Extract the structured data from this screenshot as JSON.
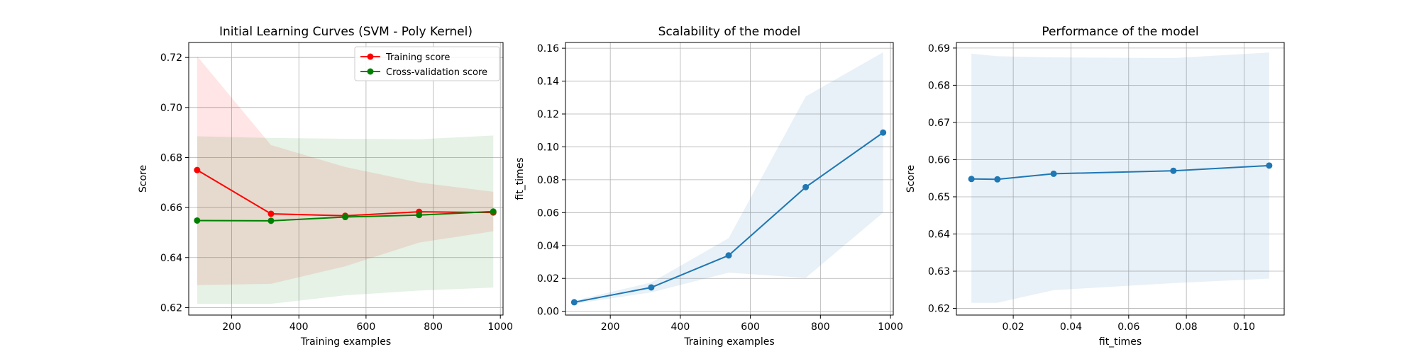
{
  "chart_data": [
    {
      "type": "line",
      "title": "Initial Learning Curves (SVM - Poly Kernel)",
      "xlabel": "Training examples",
      "ylabel": "Score",
      "xlim": [
        72,
        1008
      ],
      "ylim": [
        0.617,
        0.726
      ],
      "xticks": [
        200,
        400,
        600,
        800,
        1000
      ],
      "yticks": [
        0.62,
        0.64,
        0.66,
        0.68,
        0.7,
        0.72
      ],
      "ytick_labels": [
        "0.62",
        "0.64",
        "0.66",
        "0.68",
        "0.70",
        "0.72"
      ],
      "grid": true,
      "legend_position": "top-right",
      "x": [
        97,
        317,
        538,
        758,
        979
      ],
      "series": [
        {
          "name": "Training score",
          "color": "#ff0000",
          "band_color": "#ff0000",
          "values": [
            0.675,
            0.6575,
            0.6567,
            0.6583,
            0.658
          ],
          "band_upper": [
            0.7205,
            0.685,
            0.6762,
            0.67,
            0.6663
          ],
          "band_lower": [
            0.629,
            0.6295,
            0.6365,
            0.646,
            0.6505
          ]
        },
        {
          "name": "Cross-validation score",
          "color": "#008000",
          "band_color": "#008000",
          "values": [
            0.6548,
            0.6547,
            0.6562,
            0.657,
            0.6584
          ],
          "band_upper": [
            0.6885,
            0.6878,
            0.6875,
            0.6873,
            0.6888
          ],
          "band_lower": [
            0.6215,
            0.6215,
            0.6249,
            0.6268,
            0.628
          ]
        }
      ]
    },
    {
      "type": "line",
      "title": "Scalability of the model",
      "xlabel": "Training examples",
      "ylabel": "fit_times",
      "xlim": [
        72,
        1008
      ],
      "ylim": [
        -0.0023,
        0.1635
      ],
      "xticks": [
        200,
        400,
        600,
        800,
        1000
      ],
      "yticks": [
        0.0,
        0.02,
        0.04,
        0.06,
        0.08,
        0.1,
        0.12,
        0.14,
        0.16
      ],
      "ytick_labels": [
        "0.00",
        "0.02",
        "0.04",
        "0.06",
        "0.08",
        "0.10",
        "0.12",
        "0.14",
        "0.16"
      ],
      "grid": true,
      "x": [
        97,
        317,
        538,
        758,
        979
      ],
      "series": [
        {
          "color": "#1f77b4",
          "band_color": "#1f77b4",
          "values": [
            0.0055,
            0.0145,
            0.034,
            0.0755,
            0.1087
          ],
          "band_upper": [
            0.0065,
            0.0175,
            0.0445,
            0.1307,
            0.1575
          ],
          "band_lower": [
            0.0045,
            0.0115,
            0.0235,
            0.0203,
            0.06
          ]
        }
      ]
    },
    {
      "type": "line",
      "title": "Performance of the model",
      "xlabel": "fit_times",
      "ylabel": "Score",
      "xlim": [
        0.0003,
        0.1139
      ],
      "ylim": [
        0.6182,
        0.6915
      ],
      "xticks": [
        0.02,
        0.04,
        0.06,
        0.08,
        0.1
      ],
      "xtick_labels": [
        "0.02",
        "0.04",
        "0.06",
        "0.08",
        "0.10"
      ],
      "yticks": [
        0.62,
        0.63,
        0.64,
        0.65,
        0.66,
        0.67,
        0.68,
        0.69
      ],
      "ytick_labels": [
        "0.62",
        "0.63",
        "0.64",
        "0.65",
        "0.66",
        "0.67",
        "0.68",
        "0.69"
      ],
      "grid": true,
      "x": [
        0.0055,
        0.0145,
        0.034,
        0.0755,
        0.1087
      ],
      "series": [
        {
          "color": "#1f77b4",
          "band_color": "#1f77b4",
          "values": [
            0.6548,
            0.6547,
            0.6562,
            0.657,
            0.6584
          ],
          "band_upper": [
            0.6885,
            0.6878,
            0.6875,
            0.6873,
            0.6888
          ],
          "band_lower": [
            0.6215,
            0.6215,
            0.6249,
            0.6268,
            0.628
          ]
        }
      ]
    }
  ]
}
